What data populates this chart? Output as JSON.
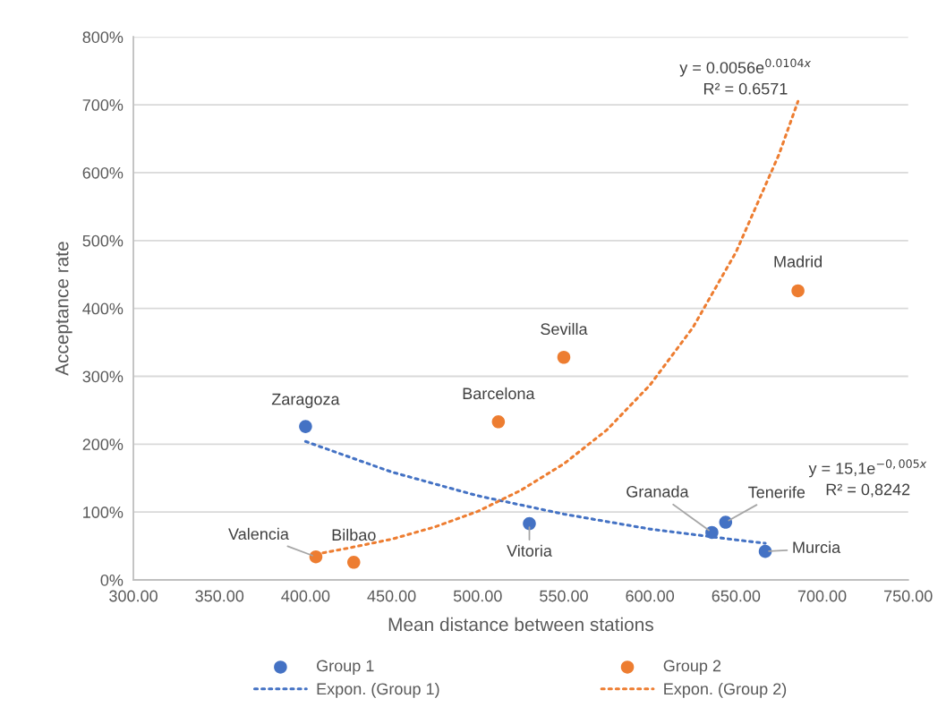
{
  "chart_data": {
    "type": "scatter",
    "xlabel": "Mean distance between stations",
    "ylabel": "Acceptance rate",
    "xlim": [
      300,
      750
    ],
    "xticks": [
      {
        "value": 300,
        "label": "300.00"
      },
      {
        "value": 350,
        "label": "350.00"
      },
      {
        "value": 400,
        "label": "400.00"
      },
      {
        "value": 450,
        "label": "450.00"
      },
      {
        "value": 500,
        "label": "500.00"
      },
      {
        "value": 550,
        "label": "550.00"
      },
      {
        "value": 600,
        "label": "600.00"
      },
      {
        "value": 650,
        "label": "650.00"
      },
      {
        "value": 700,
        "label": "700.00"
      },
      {
        "value": 750,
        "label": "750.00"
      }
    ],
    "ylim": [
      0,
      800
    ],
    "yticks": [
      {
        "value": 0,
        "label": "0%"
      },
      {
        "value": 100,
        "label": "100%"
      },
      {
        "value": 200,
        "label": "200%"
      },
      {
        "value": 300,
        "label": "300%"
      },
      {
        "value": 400,
        "label": "400%"
      },
      {
        "value": 500,
        "label": "500%"
      },
      {
        "value": 600,
        "label": "600%"
      },
      {
        "value": 700,
        "label": "700%"
      },
      {
        "value": 800,
        "label": "800%"
      }
    ],
    "grid": "y",
    "legend": "bottom",
    "marker": "circle",
    "series": [
      {
        "name": "Group 1",
        "color": "#4472c4",
        "x": [
          400,
          530,
          636,
          644,
          667
        ],
        "values": [
          226,
          83,
          70,
          85,
          42
        ]
      },
      {
        "name": "Group 2",
        "color": "#ed7d31",
        "x": [
          406,
          428,
          512,
          550,
          686
        ],
        "values": [
          34,
          26,
          233,
          328,
          426
        ]
      },
      {
        "name": "Expon. (Group 1)",
        "type": "line",
        "marker": "none",
        "line_style": "dotted",
        "color": "#4472c4",
        "x": [
          400,
          450,
          500,
          550,
          600,
          650,
          667
        ],
        "values": [
          204,
          159,
          124,
          97,
          75,
          59,
          54
        ]
      },
      {
        "name": "Expon. (Group 2)",
        "type": "line",
        "marker": "none",
        "line_style": "dotted",
        "color": "#ed7d31",
        "x": [
          406,
          425,
          450,
          475,
          500,
          525,
          550,
          575,
          600,
          625,
          650,
          675,
          686
        ],
        "values": [
          38,
          47,
          60,
          78,
          101,
          132,
          171,
          221,
          287,
          372,
          483,
          627,
          705
        ]
      }
    ],
    "annotations": [
      {
        "text": "Zaragoza",
        "x": 400,
        "y": 226
      },
      {
        "text": "Vitoria",
        "x": 530,
        "y": 83
      },
      {
        "text": "Granada",
        "x": 636,
        "y": 70
      },
      {
        "text": "Tenerife",
        "x": 644,
        "y": 85
      },
      {
        "text": "Murcia",
        "x": 667,
        "y": 42
      },
      {
        "text": "Valencia",
        "x": 406,
        "y": 34
      },
      {
        "text": "Bilbao",
        "x": 428,
        "y": 26
      },
      {
        "text": "Barcelona",
        "x": 512,
        "y": 233
      },
      {
        "text": "Sevilla",
        "x": 550,
        "y": 328
      },
      {
        "text": "Madrid",
        "x": 686,
        "y": 426
      },
      "y = 0.0056e$^{0.0104x}$\nR² = 0.6571",
      "y = 15,1e$^{−0,005x}$\nR² = 0,8242"
    ]
  }
}
